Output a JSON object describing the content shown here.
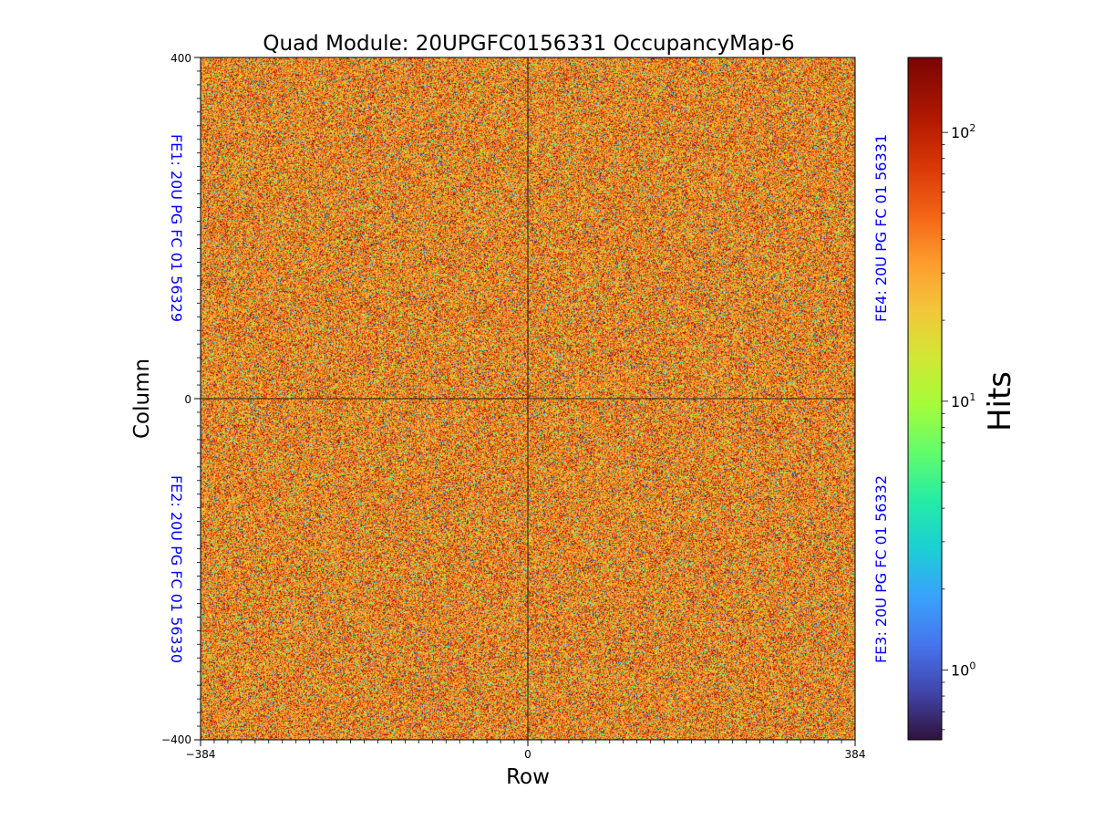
{
  "chart_data": {
    "type": "heatmap",
    "title": "Quad Module: 20UPGFC0156331 OccupancyMap-6",
    "xlabel": "Row",
    "ylabel": "Column",
    "xlim": [
      -384,
      384
    ],
    "ylim": [
      -400,
      400
    ],
    "x_ticks": [
      "−384",
      "0",
      "384"
    ],
    "y_ticks": [
      "400",
      "0",
      "−400"
    ],
    "x_tick_values": [
      -384,
      0,
      384
    ],
    "y_tick_values": [
      400,
      0,
      -400
    ],
    "colorbar": {
      "label": "Hits",
      "scale": "log",
      "range": [
        0.55,
        190
      ],
      "ticks": [
        {
          "value": 1,
          "base": "10",
          "exp": "0"
        },
        {
          "value": 10,
          "base": "10",
          "exp": "1"
        },
        {
          "value": 100,
          "base": "10",
          "exp": "2"
        }
      ],
      "colormap": "turbo"
    },
    "annotations": [
      {
        "text": "FE1: 20U PG FC 01 56329",
        "quadrant": "top-left"
      },
      {
        "text": "FE2: 20U PG FC 01 56330",
        "quadrant": "bottom-left"
      },
      {
        "text": "FE3: 20U PG FC 01 56332",
        "quadrant": "bottom-right"
      },
      {
        "text": "FE4: 20U PG FC 01 56331",
        "quadrant": "top-right"
      }
    ],
    "annotation_color": "#0000ff",
    "quadrant_dividers": {
      "x": 0,
      "y": 0
    },
    "grid": false,
    "legend": "none"
  }
}
